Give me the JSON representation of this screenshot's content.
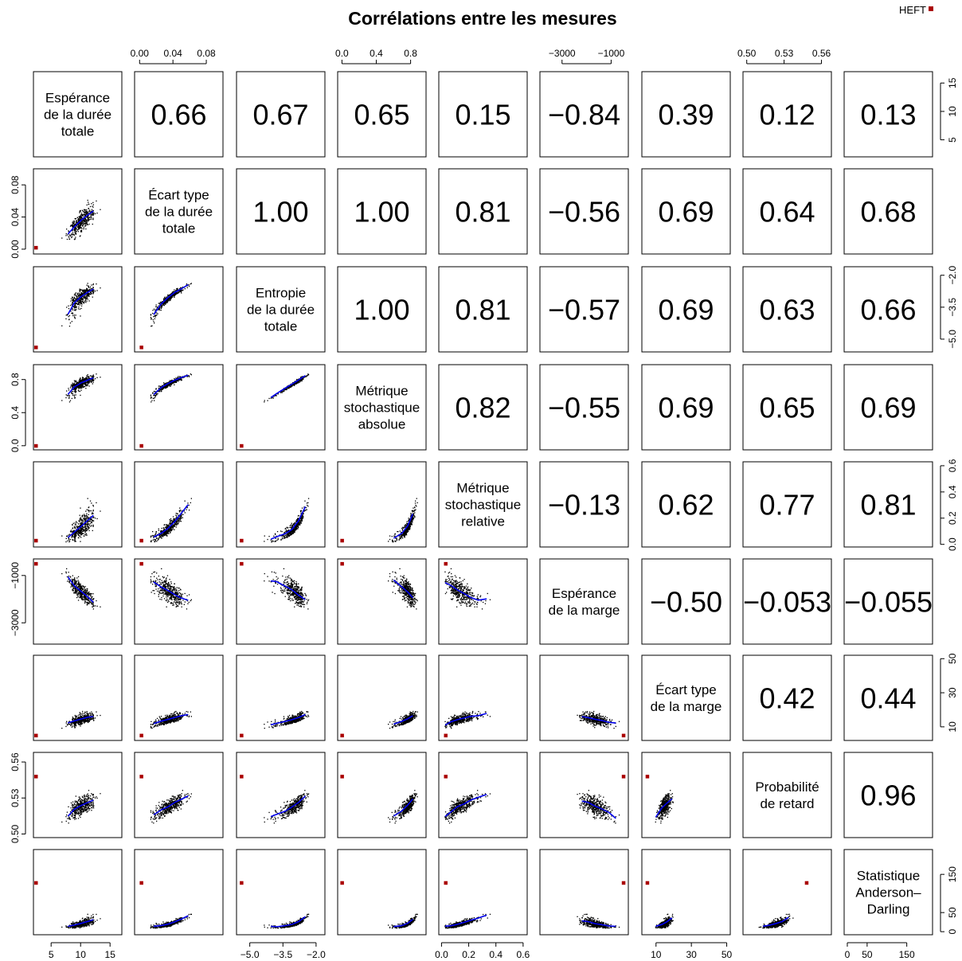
{
  "chart_data": {
    "type": "scatter",
    "title": "Corrélations entre les mesures",
    "legend": {
      "label": "HEFT",
      "color": "#aa0000",
      "placement": "top-right"
    },
    "colors": {
      "points": "#000000",
      "smooth": "#0000ee",
      "heft": "#aa0000"
    },
    "variables": [
      {
        "name": "Espérance de la durée totale",
        "lines": [
          "Espérance",
          "de la durée",
          "totale"
        ],
        "range": [
          2,
          17
        ],
        "ticks": [
          "5",
          "10",
          "15"
        ],
        "tick_values": [
          5,
          10,
          15
        ]
      },
      {
        "name": "Écart type de la durée totale",
        "lines": [
          "Écart type",
          "de la durée",
          "totale"
        ],
        "range": [
          -0.006,
          0.1
        ],
        "ticks": [
          "0.00",
          "0.04",
          "0.08"
        ],
        "tick_values": [
          0.0,
          0.04,
          0.08
        ]
      },
      {
        "name": "Entropie de la durée totale",
        "lines": [
          "Entropie",
          "de la durée",
          "totale"
        ],
        "range": [
          -5.6,
          -1.6
        ],
        "ticks": [
          "-5.0",
          "-3.5",
          "-2.0"
        ],
        "tick_values": [
          -5.0,
          -3.5,
          -2.0
        ]
      },
      {
        "name": "Métrique stochastique absolue",
        "lines": [
          "Métrique",
          "stochastique",
          "absolue"
        ],
        "range": [
          -0.05,
          0.98
        ],
        "ticks": [
          "0.0",
          "0.4",
          "0.8"
        ],
        "tick_values": [
          0.0,
          0.4,
          0.8
        ]
      },
      {
        "name": "Métrique stochastique relative",
        "lines": [
          "Métrique",
          "stochastique",
          "relative"
        ],
        "range": [
          -0.02,
          0.63
        ],
        "ticks": [
          "0.0",
          "0.2",
          "0.4",
          "0.6"
        ],
        "tick_values": [
          0.0,
          0.2,
          0.4,
          0.6
        ]
      },
      {
        "name": "Espérance de la marge",
        "lines": [
          "Espérance",
          "de la marge"
        ],
        "range": [
          -3900,
          -300
        ],
        "ticks": [
          "-3000",
          "-1000"
        ],
        "tick_values": [
          -3000,
          -1000
        ]
      },
      {
        "name": "Écart type de la marge",
        "lines": [
          "Écart type",
          "de la marge"
        ],
        "range": [
          2,
          52
        ],
        "ticks": [
          "10",
          "30",
          "50"
        ],
        "tick_values": [
          10,
          30,
          50
        ]
      },
      {
        "name": "Probabilité de retard",
        "lines": [
          "Probabilité",
          "de retard"
        ],
        "range": [
          0.497,
          0.568
        ],
        "ticks": [
          "0.50",
          "0.53",
          "0.56"
        ],
        "tick_values": [
          0.5,
          0.53,
          0.56
        ]
      },
      {
        "name": "Statistique Anderson-Darling",
        "lines": [
          "Statistique",
          "Anderson–",
          "Darling"
        ],
        "range": [
          -8,
          215
        ],
        "ticks": [
          "0",
          "50",
          "150"
        ],
        "tick_values": [
          0,
          50,
          150
        ]
      }
    ],
    "correlations": [
      [
        "0.66",
        "0.67",
        "0.65",
        "0.15",
        "-0.84",
        "0.39",
        "0.12",
        "0.13"
      ],
      [
        "1.00",
        "1.00",
        "0.81",
        "-0.56",
        "0.69",
        "0.64",
        "0.68"
      ],
      [
        "1.00",
        "0.81",
        "-0.57",
        "0.69",
        "0.63",
        "0.66"
      ],
      [
        "0.82",
        "-0.55",
        "0.69",
        "0.65",
        "0.69"
      ],
      [
        "-0.13",
        "0.62",
        "0.77",
        "0.81"
      ],
      [
        "-0.50",
        "-0.053",
        "-0.055"
      ],
      [
        "0.42",
        "0.44"
      ],
      [
        "0.96"
      ]
    ],
    "heft": [
      1.0,
      0.002,
      -5.38,
      0.0,
      0.03,
      -500,
      5.0,
      0.548,
      128
    ]
  }
}
